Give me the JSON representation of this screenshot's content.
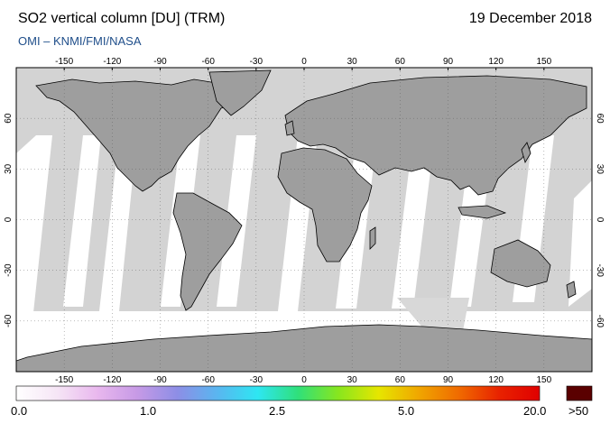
{
  "header": {
    "title": "SO2 vertical column [DU] (TRM)",
    "date": "19 December 2018",
    "credit": "OMI  –  KNMI/FMI/NASA"
  },
  "map": {
    "lon_ticks": [
      -150,
      -120,
      -90,
      -60,
      -30,
      0,
      30,
      60,
      90,
      120,
      150
    ],
    "lat_ticks": [
      60,
      30,
      0,
      -30,
      -60
    ],
    "lon_range": [
      -180,
      180
    ],
    "lat_range": [
      -90,
      90
    ]
  },
  "colorbar": {
    "labels": [
      "0.0",
      "1.0",
      "2.5",
      "5.0",
      "20.0"
    ],
    "overflow_label": ">50",
    "gradient": [
      "#ffffff",
      "#f6e6f6",
      "#e9b8ee",
      "#c79ae6",
      "#8d8ee6",
      "#59b6f0",
      "#2ee6f2",
      "#2fe07a",
      "#88e61e",
      "#e6e600",
      "#f0a600",
      "#f06a00",
      "#e82200",
      "#e00000"
    ],
    "overflow_color": "#5a0000"
  }
}
